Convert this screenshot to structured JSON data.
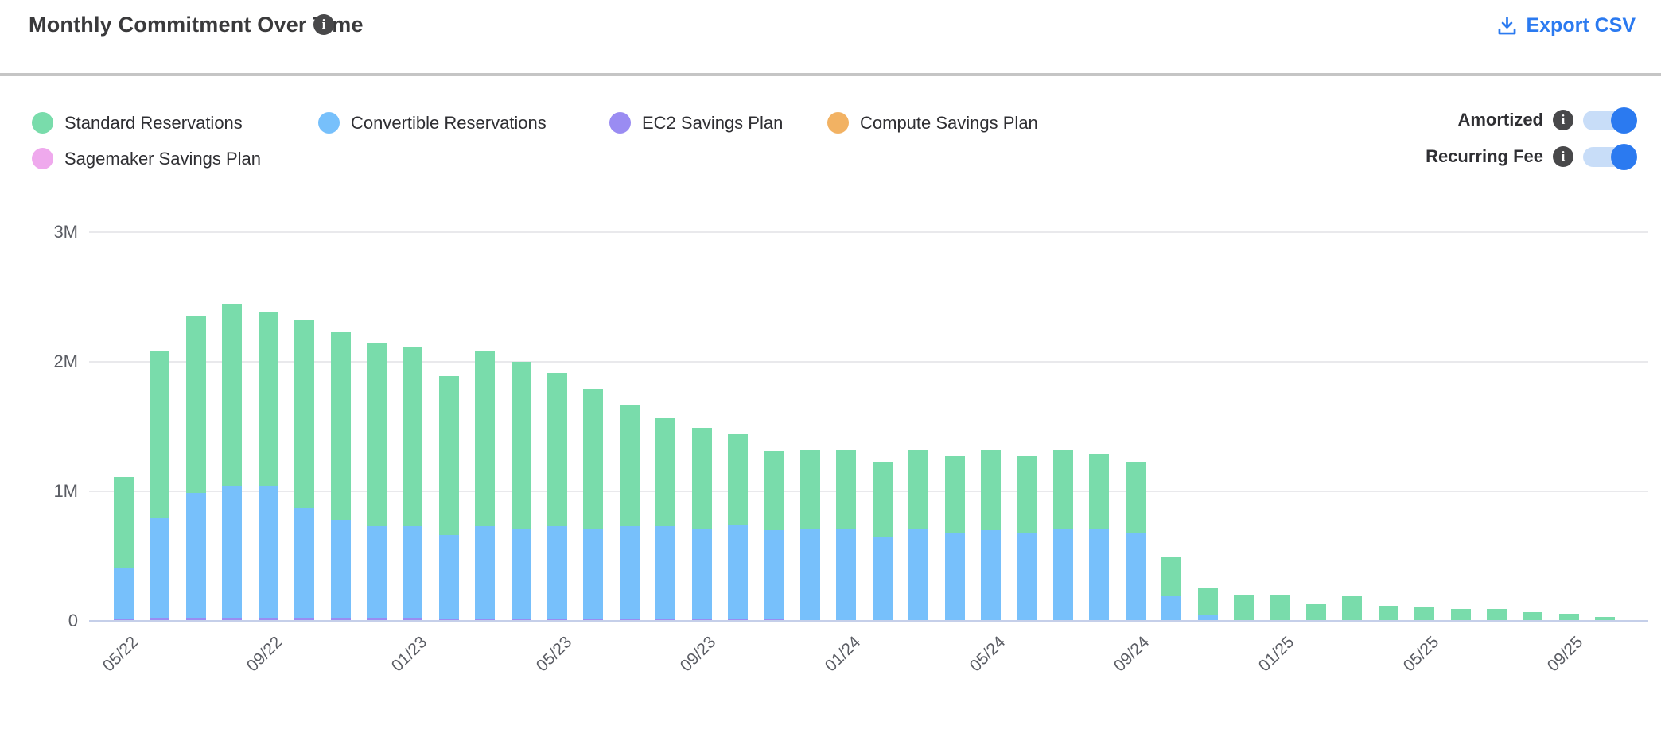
{
  "header": {
    "title": "Monthly Commitment Over Time",
    "export_label": "Export CSV"
  },
  "legend": {
    "items": [
      {
        "label": "Standard Reservations",
        "color": "#79dcab"
      },
      {
        "label": "Convertible Reservations",
        "color": "#77c0fb"
      },
      {
        "label": "EC2 Savings Plan",
        "color": "#9a8cf2"
      },
      {
        "label": "Compute Savings Plan",
        "color": "#f2b263"
      },
      {
        "label": "Sagemaker Savings Plan",
        "color": "#efa9ed"
      }
    ]
  },
  "toggles": [
    {
      "label": "Amortized",
      "state": "on"
    },
    {
      "label": "Recurring Fee",
      "state": "on"
    }
  ],
  "accent_color": "#2b7af0",
  "chart_data": {
    "type": "bar",
    "stacked": true,
    "title": "Monthly Commitment Over Time",
    "categories": [
      "05/22",
      "06/22",
      "07/22",
      "08/22",
      "09/22",
      "10/22",
      "11/22",
      "12/22",
      "01/23",
      "02/23",
      "03/23",
      "04/23",
      "05/23",
      "06/23",
      "07/23",
      "08/23",
      "09/23",
      "10/23",
      "11/23",
      "12/23",
      "01/24",
      "02/24",
      "03/24",
      "04/24",
      "05/24",
      "06/24",
      "07/24",
      "08/24",
      "09/24",
      "10/24",
      "11/24",
      "12/24",
      "01/25",
      "02/25",
      "03/25",
      "04/25",
      "05/25",
      "06/25",
      "07/25",
      "08/25",
      "09/25",
      "10/25"
    ],
    "x_tick_labels": [
      "05/22",
      "09/22",
      "01/23",
      "05/23",
      "09/23",
      "01/24",
      "05/24",
      "09/24",
      "01/25",
      "05/25",
      "09/25"
    ],
    "y_ticks": [
      "0",
      "1M",
      "2M",
      "3M"
    ],
    "ylim": [
      0,
      3000000
    ],
    "grid": true,
    "legend_position": "top-left",
    "stack_order_bottom_to_top": [
      "EC2 Savings Plan",
      "Convertible Reservations",
      "Standard Reservations",
      "Compute Savings Plan",
      "Sagemaker Savings Plan"
    ],
    "series": [
      {
        "name": "Standard Reservations",
        "color": "#79dcab",
        "values": [
          700000,
          1290000,
          1370000,
          1400000,
          1340000,
          1450000,
          1450000,
          1410000,
          1380000,
          1230000,
          1350000,
          1290000,
          1180000,
          1085000,
          935000,
          830000,
          780000,
          700000,
          610000,
          615000,
          615000,
          580000,
          615000,
          590000,
          620000,
          590000,
          615000,
          585000,
          555000,
          310000,
          215000,
          195000,
          195000,
          130000,
          190000,
          115000,
          105000,
          90000,
          90000,
          65000,
          55000,
          30000
        ]
      },
      {
        "name": "Convertible Reservations",
        "color": "#77c0fb",
        "values": [
          390000,
          770000,
          960000,
          1020000,
          1020000,
          845000,
          755000,
          705000,
          705000,
          640000,
          710000,
          690000,
          715000,
          685000,
          715000,
          715000,
          690000,
          720000,
          680000,
          705000,
          705000,
          650000,
          705000,
          680000,
          700000,
          680000,
          705000,
          705000,
          675000,
          190000,
          45000,
          0,
          0,
          0,
          0,
          0,
          0,
          0,
          0,
          0,
          0,
          0
        ]
      },
      {
        "name": "EC2 Savings Plan",
        "color": "#9a8cf2",
        "values": [
          20000,
          25000,
          25000,
          25000,
          25000,
          25000,
          25000,
          25000,
          25000,
          20000,
          20000,
          20000,
          20000,
          20000,
          20000,
          20000,
          20000,
          20000,
          20000,
          0,
          0,
          0,
          0,
          0,
          0,
          0,
          0,
          0,
          0,
          0,
          0,
          0,
          0,
          0,
          0,
          0,
          0,
          0,
          0,
          0,
          0,
          0
        ]
      },
      {
        "name": "Compute Savings Plan",
        "color": "#f2b263",
        "values": [
          0,
          0,
          0,
          0,
          0,
          0,
          0,
          0,
          0,
          0,
          0,
          0,
          0,
          0,
          0,
          0,
          0,
          0,
          0,
          0,
          0,
          0,
          0,
          0,
          0,
          0,
          0,
          0,
          0,
          0,
          0,
          0,
          0,
          0,
          0,
          0,
          0,
          0,
          0,
          0,
          0,
          0
        ]
      },
      {
        "name": "Sagemaker Savings Plan",
        "color": "#efa9ed",
        "values": [
          0,
          0,
          0,
          0,
          0,
          0,
          0,
          0,
          0,
          0,
          0,
          0,
          0,
          0,
          0,
          0,
          0,
          0,
          0,
          0,
          0,
          0,
          0,
          0,
          0,
          0,
          0,
          0,
          0,
          0,
          0,
          0,
          0,
          0,
          0,
          0,
          0,
          0,
          0,
          0,
          0,
          0
        ]
      }
    ]
  }
}
